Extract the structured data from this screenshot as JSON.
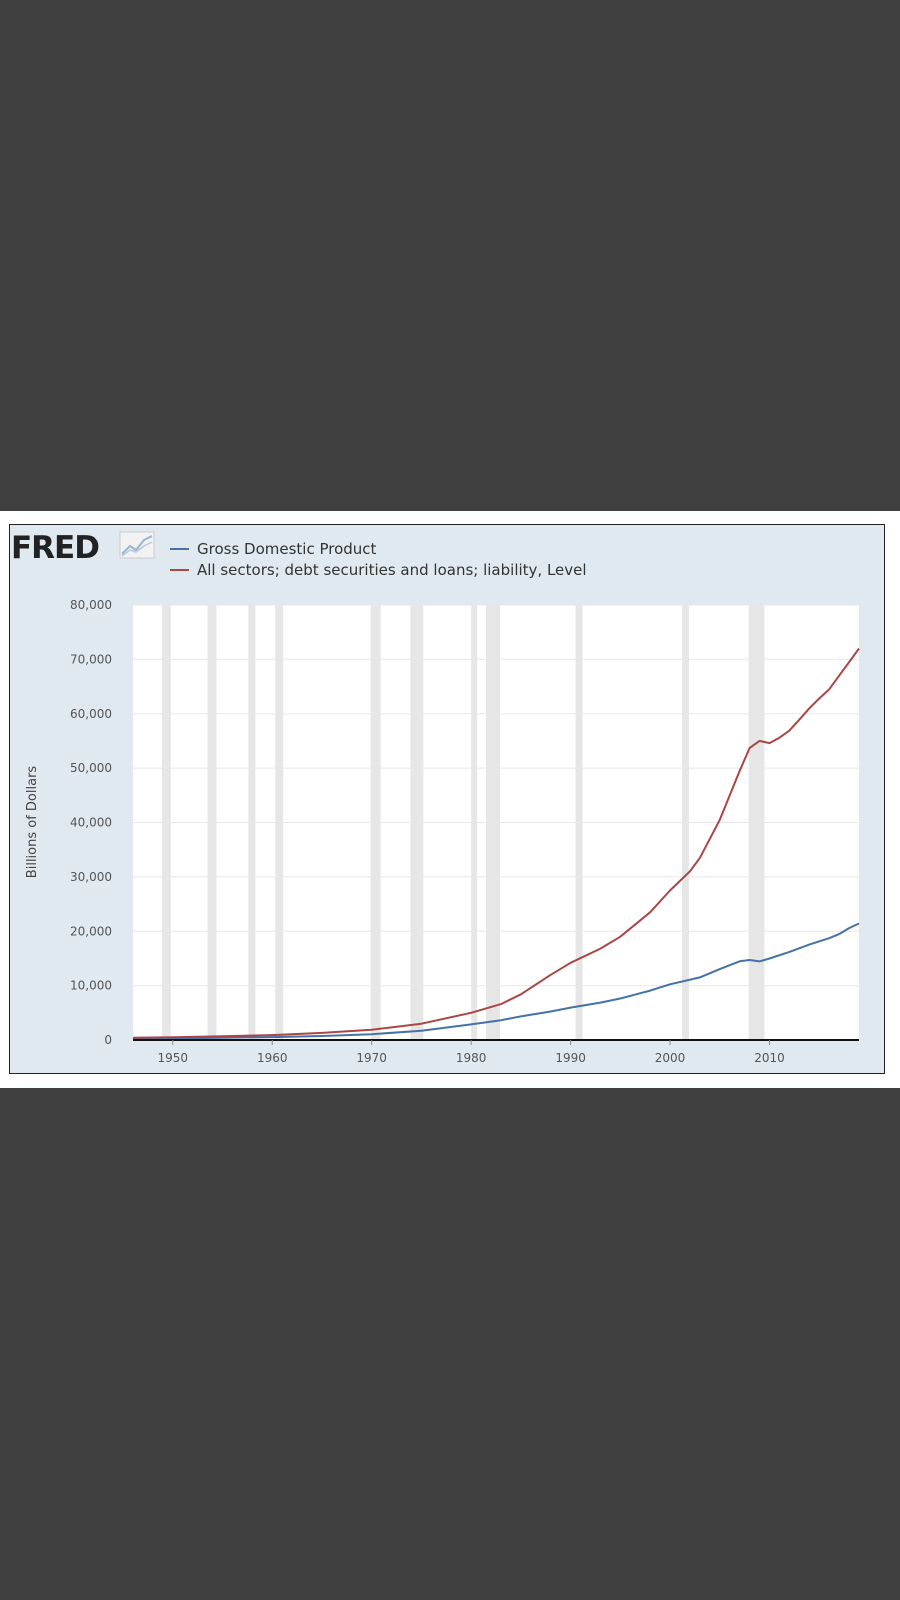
{
  "logo": {
    "text": "FRED"
  },
  "colors": {
    "background": "#404040",
    "frame": "#e1e9f0",
    "plot": "#ffffff",
    "recession": "#e6e6e6",
    "gdp": "#4572a7",
    "debt": "#aa4643"
  },
  "chart_data": {
    "type": "line",
    "title": "",
    "xlabel": "",
    "ylabel": "Billions of Dollars",
    "xlim": [
      1946,
      2019
    ],
    "ylim": [
      0,
      80000
    ],
    "grid": true,
    "legend_placement": "top-left",
    "xticks": [
      1950,
      1960,
      1970,
      1980,
      1990,
      2000,
      2010
    ],
    "yticks": [
      0,
      10000,
      20000,
      30000,
      40000,
      50000,
      60000,
      70000,
      80000
    ],
    "ytick_labels": [
      "0",
      "10,000",
      "20,000",
      "30,000",
      "40,000",
      "50,000",
      "60,000",
      "70,000",
      "80,000"
    ],
    "recessions": [
      [
        1948.9,
        1949.8
      ],
      [
        1953.5,
        1954.4
      ],
      [
        1957.6,
        1958.3
      ],
      [
        1960.3,
        1961.1
      ],
      [
        1969.9,
        1970.9
      ],
      [
        1973.9,
        1975.2
      ],
      [
        1980.0,
        1980.5
      ],
      [
        1981.5,
        1982.9
      ],
      [
        1990.5,
        1991.2
      ],
      [
        2001.2,
        2001.9
      ],
      [
        2007.9,
        2009.5
      ]
    ],
    "series": [
      {
        "name": "Gross Domestic Product",
        "color": "#4572a7",
        "x": [
          1946,
          1950,
          1955,
          1960,
          1965,
          1970,
          1975,
          1980,
          1983,
          1985,
          1988,
          1990,
          1993,
          1995,
          1998,
          2000,
          2003,
          2005,
          2007,
          2008,
          2009,
          2010,
          2012,
          2014,
          2016,
          2017,
          2018,
          2019
        ],
        "y": [
          240,
          300,
          430,
          540,
          740,
          1070,
          1690,
          2860,
          3640,
          4340,
          5240,
          5960,
          6880,
          7640,
          9090,
          10250,
          11510,
          13040,
          14470,
          14710,
          14450,
          14990,
          16200,
          17550,
          18720,
          19480,
          20580,
          21430
        ]
      },
      {
        "name": "All sectors; debt securities and loans; liability, Level",
        "color": "#aa4643",
        "x": [
          1946,
          1950,
          1955,
          1960,
          1965,
          1970,
          1975,
          1980,
          1983,
          1985,
          1988,
          1990,
          1993,
          1995,
          1998,
          2000,
          2002,
          2003,
          2005,
          2007,
          2008,
          2009,
          2010,
          2011,
          2012,
          2013,
          2014,
          2015,
          2016,
          2017,
          2018,
          2019
        ],
        "y": [
          400,
          500,
          700,
          900,
          1300,
          1900,
          3000,
          5000,
          6600,
          8400,
          12000,
          14200,
          16800,
          19000,
          23500,
          27500,
          31000,
          33500,
          40500,
          49500,
          53700,
          55000,
          54600,
          55600,
          56900,
          58900,
          61000,
          62800,
          64500,
          67000,
          69500,
          72000
        ]
      }
    ]
  }
}
